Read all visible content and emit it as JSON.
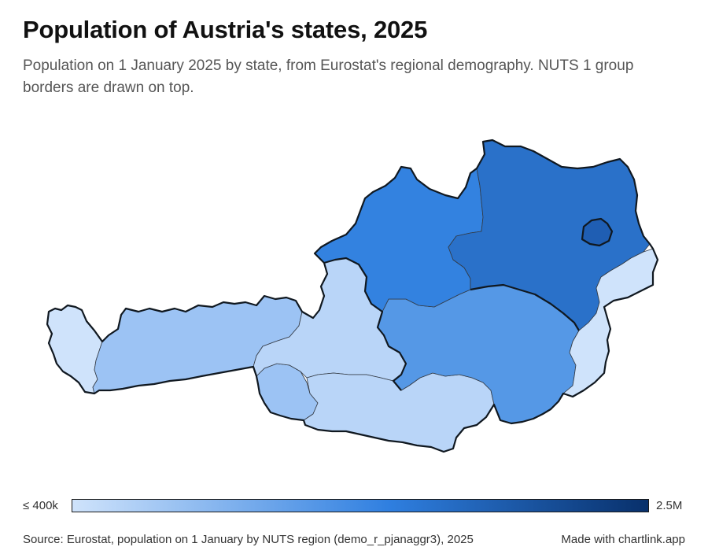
{
  "header": {
    "title": "Population of Austria's states, 2025",
    "subtitle": "Population on 1 January 2025 by state, from Eurostat's regional demography. NUTS 1 group borders are drawn on top."
  },
  "legend": {
    "min_label": "≤ 400k",
    "max_label": "2.5M",
    "min_value": 400000,
    "max_value": 2500000,
    "color_low": "#cfe3fb",
    "color_mid": "#2f7fe0",
    "color_high": "#08306b"
  },
  "footer": {
    "source": "Source: Eurostat, population on 1 January by NUTS region (demo_r_pjanaggr3), 2025",
    "credit": "Made with chartlink.app"
  },
  "map_data": {
    "type": "choropleth",
    "region_count": 9,
    "regions": [
      {
        "id": "wien",
        "color": "#1f5eb3"
      },
      {
        "id": "niederosterreich",
        "color": "#2a71c9"
      },
      {
        "id": "oberosterreich",
        "color": "#3382e0"
      },
      {
        "id": "steiermark",
        "color": "#5598e6"
      },
      {
        "id": "tirol",
        "color": "#9cc3f4"
      },
      {
        "id": "karnten",
        "color": "#b9d5f8"
      },
      {
        "id": "salzburg",
        "color": "#b9d5f8"
      },
      {
        "id": "vorarlberg",
        "color": "#cfe3fb"
      },
      {
        "id": "burgenland",
        "color": "#cfe3fb"
      }
    ]
  }
}
